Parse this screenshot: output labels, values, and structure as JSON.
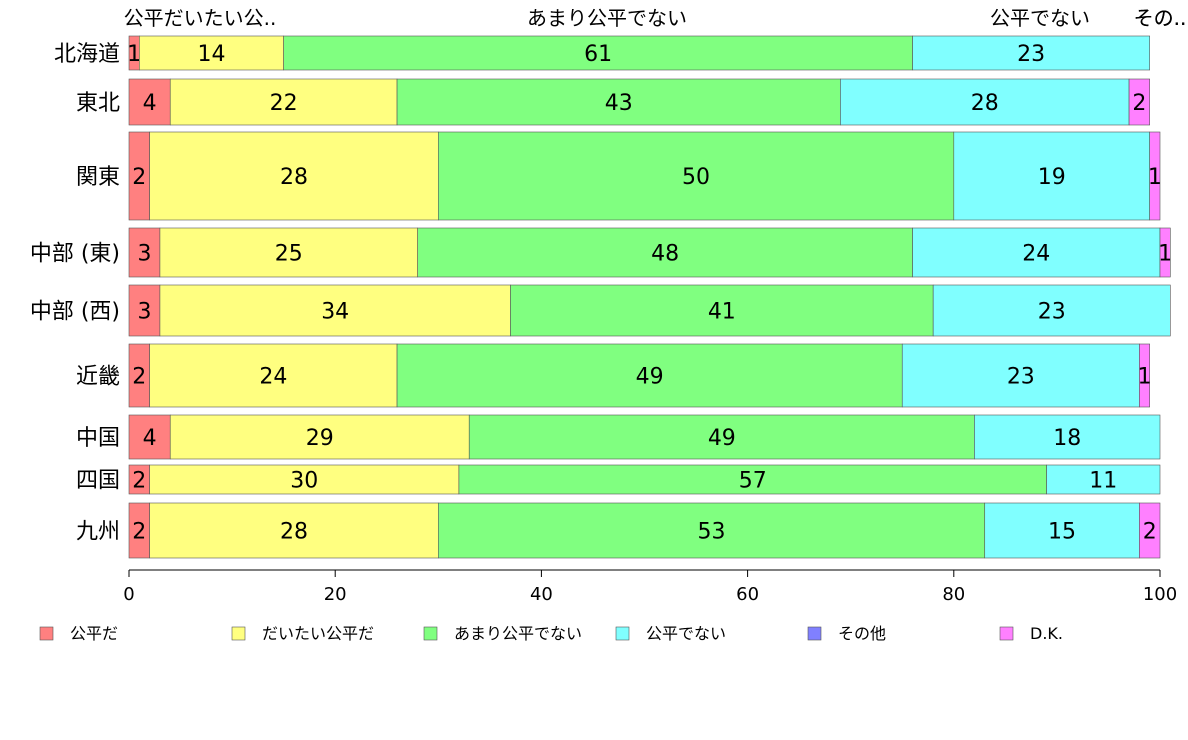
{
  "chart_data": {
    "type": "bar",
    "orientation": "horizontal",
    "stacked": true,
    "categories": [
      "北海道",
      "東北",
      "関東",
      "中部 (東)",
      "中部 (西)",
      "近畿",
      "中国",
      "四国",
      "九州"
    ],
    "series": [
      {
        "name": "公平だ",
        "color": "#FF8080",
        "values": [
          1,
          4,
          2,
          3,
          3,
          2,
          4,
          2,
          2
        ]
      },
      {
        "name": "だいたい公平だ",
        "color": "#FFFF80",
        "values": [
          14,
          22,
          28,
          25,
          34,
          24,
          29,
          30,
          28
        ]
      },
      {
        "name": "あまり公平でない",
        "color": "#80FF80",
        "values": [
          61,
          43,
          50,
          48,
          41,
          49,
          49,
          57,
          53
        ]
      },
      {
        "name": "公平でない",
        "color": "#80FFFF",
        "values": [
          23,
          28,
          19,
          24,
          23,
          23,
          18,
          11,
          15
        ]
      },
      {
        "name": "その他",
        "color": "#8080FF",
        "values": [
          0,
          0,
          0,
          0,
          0,
          0,
          0,
          0,
          0
        ]
      },
      {
        "name": "D.K.",
        "color": "#FF80FF",
        "values": [
          0,
          2,
          1,
          1,
          0,
          1,
          0,
          0,
          2
        ]
      }
    ],
    "top_labels": [
      "公平だいたい公..",
      "あまり公平でない",
      "公平でない",
      "その..",
      "その.."
    ],
    "xlim": [
      0,
      100
    ],
    "xticks": [
      "0",
      "20",
      "40",
      "60",
      "80",
      "100"
    ],
    "xlabel": "",
    "ylabel": "",
    "title": "",
    "grid": false,
    "legend_position": "bottom"
  }
}
